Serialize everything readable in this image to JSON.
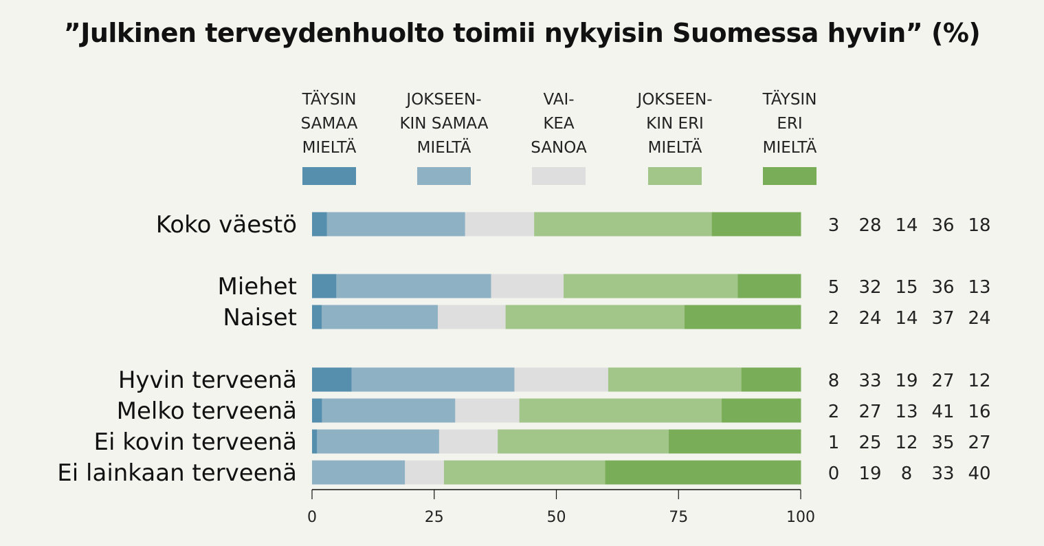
{
  "chart_data": {
    "type": "bar",
    "orientation": "horizontal-stacked-100",
    "title": "”Julkinen terveydenhuolto toimii nykyisin Suomessa hyvin” (%)",
    "legend_position": "top",
    "series": [
      {
        "name": [
          "TÄYSIN",
          "SAMAA",
          "MIELTÄ"
        ],
        "color": "#568fad",
        "values": [
          3,
          5,
          2,
          8,
          2,
          1,
          0
        ]
      },
      {
        "name": [
          "JOKSEEN-",
          "KIN SAMAA",
          "MIELTÄ"
        ],
        "color": "#8fb1c4",
        "values": [
          28,
          32,
          24,
          33,
          27,
          25,
          19
        ]
      },
      {
        "name": [
          "VAI-",
          "KEA",
          "SANOA"
        ],
        "color": "#dedede",
        "values": [
          14,
          15,
          14,
          19,
          13,
          12,
          8
        ]
      },
      {
        "name": [
          "JOKSEEN-",
          "KIN ERI",
          "MIELTÄ"
        ],
        "color": "#a2c589",
        "values": [
          36,
          36,
          37,
          27,
          41,
          35,
          33
        ]
      },
      {
        "name": [
          "TÄYSIN",
          "ERI",
          "MIELTÄ"
        ],
        "color": "#7aad58",
        "values": [
          18,
          13,
          24,
          12,
          16,
          27,
          40
        ]
      }
    ],
    "categories": [
      "Koko väestö",
      "Miehet",
      "Naiset",
      "Hyvin terveenä",
      "Melko terveenä",
      "Ei kovin terveenä",
      "Ei lainkaan terveenä"
    ],
    "groups": [
      [
        0
      ],
      [
        1,
        2
      ],
      [
        3,
        4,
        5,
        6
      ]
    ],
    "xlim": [
      0,
      100
    ],
    "xticks": [
      "0",
      "25",
      "50",
      "75",
      "100"
    ]
  }
}
